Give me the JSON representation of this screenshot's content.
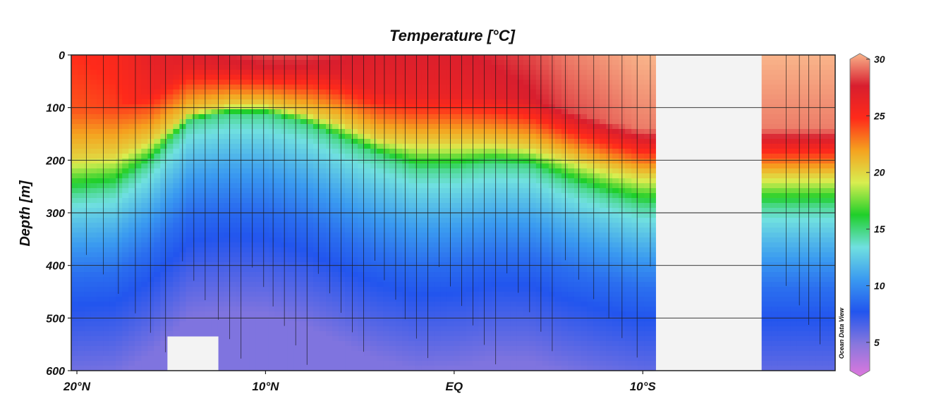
{
  "chart_data": {
    "type": "heatmap",
    "title": "Temperature [°C]",
    "ylabel": "Depth [m]",
    "xlabel": "",
    "x_tick_labels": [
      "20°N",
      "10°N",
      "EQ",
      "10°S"
    ],
    "x_tick_values": [
      20,
      10,
      0,
      -10
    ],
    "xlim": [
      20.3,
      -20.2
    ],
    "ylim": [
      0,
      600
    ],
    "y_ticks": [
      0,
      100,
      200,
      300,
      400,
      500,
      600
    ],
    "y_reversed": true,
    "grid": true,
    "colorbar": {
      "ticks": [
        5,
        10,
        15,
        20,
        25,
        30
      ],
      "range": [
        2.5,
        30
      ],
      "colors": [
        "#dd77dd",
        "#8877dd",
        "#2255ee",
        "#3a9af0",
        "#70e0e0",
        "#1fcf2a",
        "#d8ee50",
        "#f5a21f",
        "#ff2a1a",
        "#d81e2e",
        "#f9b48a"
      ],
      "watermark": "Ocean Data View"
    },
    "thermocline_depth_m": {
      "latitude": [
        20,
        18,
        16,
        14,
        12,
        10,
        8,
        6,
        4,
        2,
        0,
        -2,
        -4,
        -6,
        -8,
        -10
      ],
      "isotherm_20C": [
        195,
        190,
        160,
        110,
        95,
        95,
        110,
        130,
        160,
        168,
        168,
        168,
        175,
        195,
        215,
        230
      ],
      "isotherm_15C": [
        260,
        250,
        200,
        125,
        112,
        112,
        130,
        160,
        190,
        215,
        215,
        205,
        210,
        240,
        265,
        285
      ]
    },
    "surface_temperature_c": [
      24.5,
      25,
      26.5,
      27,
      27.5,
      28,
      28,
      27.5,
      27,
      27,
      27,
      27.5,
      28,
      29,
      29.5,
      30
    ],
    "no_data_regions": [
      {
        "lat_from": 15.2,
        "lat_to": 12.5,
        "depth_from": 535,
        "depth_to": 600
      },
      {
        "lat_from": -10.7,
        "lat_to": -16.3,
        "depth_from": 0,
        "depth_to": 600
      }
    ],
    "station_latitudes": [
      19.5,
      18.6,
      17.8,
      16.9,
      16.1,
      15.3,
      14.4,
      13.8,
      13.2,
      12.5,
      11.9,
      11.3,
      10.7,
      10.1,
      9.6,
      9.0,
      8.4,
      7.8,
      7.2,
      6.6,
      6.0,
      5.4,
      4.8,
      4.2,
      3.7,
      3.1,
      2.6,
      2.0,
      1.4,
      0.8,
      0.2,
      -0.4,
      -1.0,
      -1.6,
      -2.2,
      -2.8,
      -3.4,
      -4.0,
      -4.6,
      -5.2,
      -5.9,
      -6.6,
      -7.4,
      -8.2,
      -8.9,
      -9.7,
      -10.4,
      -17.6,
      -18.3,
      -18.8,
      -19.4
    ]
  }
}
